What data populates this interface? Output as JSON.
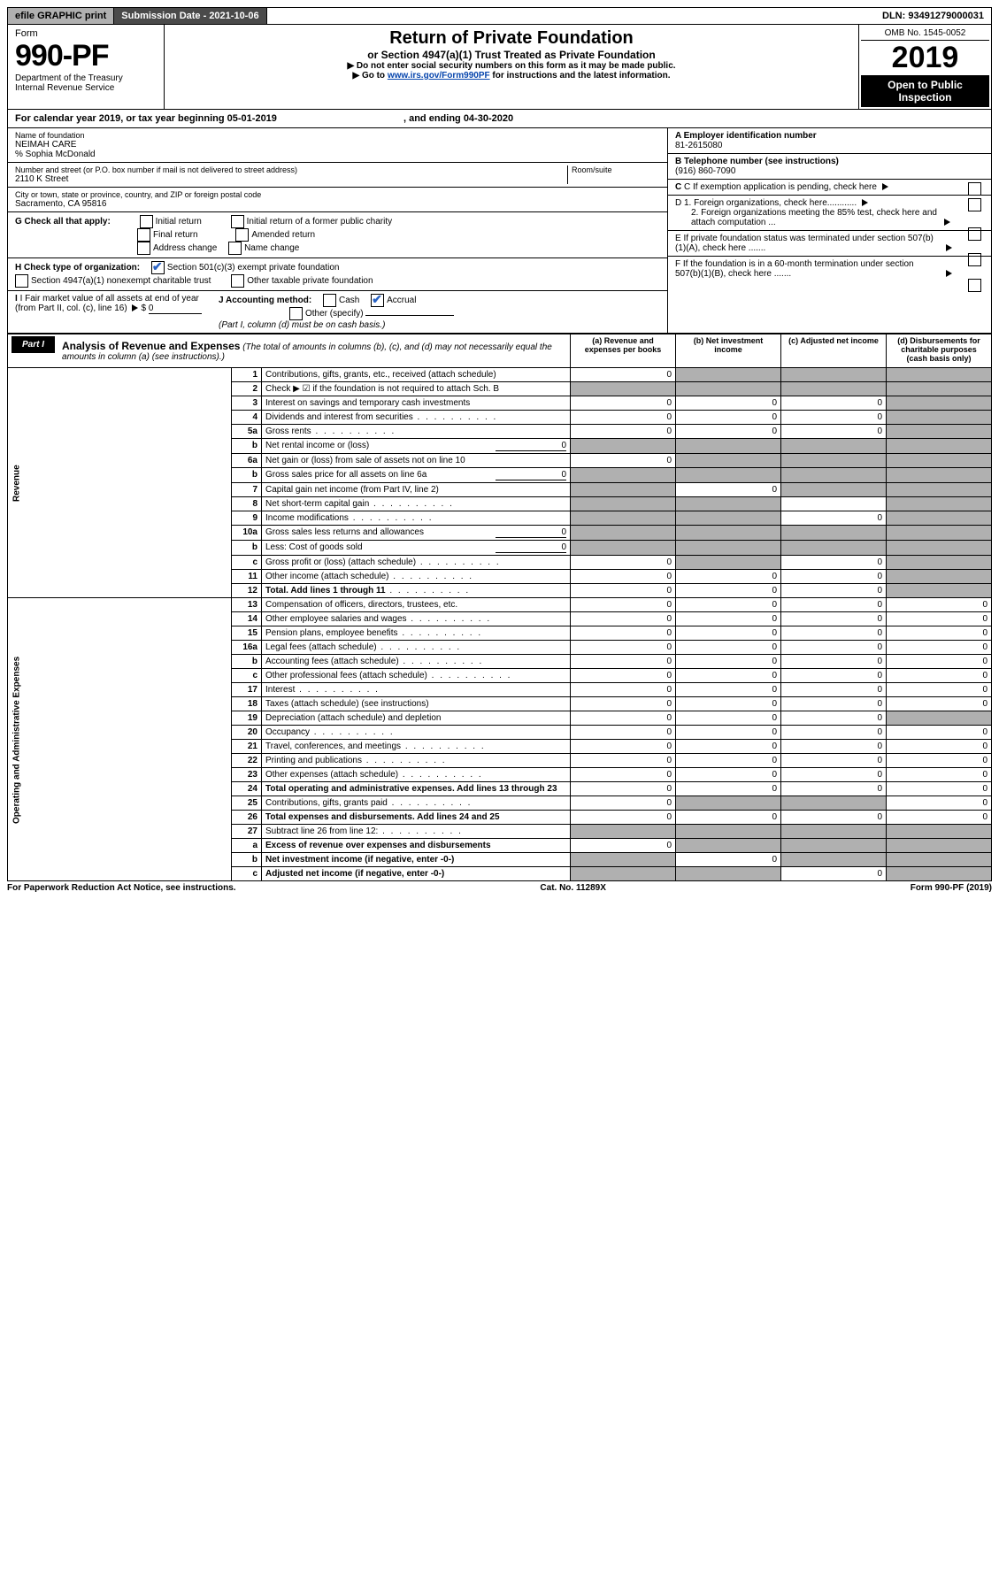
{
  "topbar": {
    "efile": "efile GRAPHIC print",
    "sublabel": "Submission Date - 2021-10-06",
    "dln": "DLN: 93491279000031"
  },
  "header": {
    "form_prefix": "Form",
    "form_no": "990-PF",
    "dept": "Department of the Treasury",
    "irs": "Internal Revenue Service",
    "title": "Return of Private Foundation",
    "sub1": "or Section 4947(a)(1) Trust Treated as Private Foundation",
    "sub2a": "▶ Do not enter social security numbers on this form as it may be made public.",
    "sub2b": "▶ Go to ",
    "link": "www.irs.gov/Form990PF",
    "sub2c": " for instructions and the latest information.",
    "omb": "OMB No. 1545-0052",
    "year": "2019",
    "open": "Open to Public Inspection"
  },
  "cal": {
    "text": "For calendar year 2019, or tax year beginning 05-01-2019",
    "end": ", and ending 04-30-2020"
  },
  "left": {
    "name_lbl": "Name of foundation",
    "name": "NEIMAH CARE",
    "care": "% Sophia McDonald",
    "addr_lbl": "Number and street (or P.O. box number if mail is not delivered to street address)",
    "addr": "2110 K Street",
    "room_lbl": "Room/suite",
    "city_lbl": "City or town, state or province, country, and ZIP or foreign postal code",
    "city": "Sacramento, CA  95816",
    "g": "G Check all that apply:",
    "g1": "Initial return",
    "g2": "Final return",
    "g3": "Address change",
    "g4": "Initial return of a former public charity",
    "g5": "Amended return",
    "g6": "Name change",
    "h": "H Check type of organization:",
    "h1": "Section 501(c)(3) exempt private foundation",
    "h2": "Section 4947(a)(1) nonexempt charitable trust",
    "h3": "Other taxable private foundation",
    "i": "I Fair market value of all assets at end of year (from Part II, col. (c), line 16)",
    "i_amt": "0",
    "j": "J Accounting method:",
    "j1": "Cash",
    "j2": "Accrual",
    "j3": "Other (specify)",
    "j_note": "(Part I, column (d) must be on cash basis.)"
  },
  "right": {
    "a_lbl": "A Employer identification number",
    "a": "81-2615080",
    "b_lbl": "B Telephone number (see instructions)",
    "b": "(916) 860-7090",
    "c": "C If exemption application is pending, check here",
    "d1": "D 1. Foreign organizations, check here............",
    "d2": "2. Foreign organizations meeting the 85% test, check here and attach computation ...",
    "e": "E  If private foundation status was terminated under section 507(b)(1)(A), check here .......",
    "f": "F  If the foundation is in a 60-month termination under section 507(b)(1)(B), check here ......."
  },
  "part1": {
    "tag": "Part I",
    "title": "Analysis of Revenue and Expenses",
    "note": "(The total of amounts in columns (b), (c), and (d) may not necessarily equal the amounts in column (a) (see instructions).)",
    "col_a": "(a)  Revenue and expenses per books",
    "col_b": "(b)  Net investment income",
    "col_c": "(c)  Adjusted net income",
    "col_d": "(d)  Disbursements for charitable purposes (cash basis only)"
  },
  "side": {
    "rev": "Revenue",
    "opex": "Operating and Administrative Expenses"
  },
  "rows": [
    {
      "n": "1",
      "d": "Contributions, gifts, grants, etc., received (attach schedule)",
      "a": "0",
      "b": "",
      "c": "",
      "dcol": "",
      "bg": [
        "",
        "g",
        "g",
        "g"
      ]
    },
    {
      "n": "2",
      "d": "Check ▶ ☑ if the foundation is not required to attach Sch. B",
      "a": "",
      "b": "",
      "c": "",
      "dcol": "",
      "bg": [
        "g",
        "g",
        "g",
        "g"
      ],
      "bold_not": true
    },
    {
      "n": "3",
      "d": "Interest on savings and temporary cash investments",
      "a": "0",
      "b": "0",
      "c": "0",
      "dcol": "",
      "bg": [
        "",
        "",
        "",
        "g"
      ]
    },
    {
      "n": "4",
      "d": "Dividends and interest from securities",
      "a": "0",
      "b": "0",
      "c": "0",
      "dcol": "",
      "bg": [
        "",
        "",
        "",
        "g"
      ]
    },
    {
      "n": "5a",
      "d": "Gross rents",
      "a": "0",
      "b": "0",
      "c": "0",
      "dcol": "",
      "bg": [
        "",
        "",
        "",
        "g"
      ]
    },
    {
      "n": "b",
      "d": "Net rental income or (loss)",
      "inline": "0",
      "a": "",
      "b": "",
      "c": "",
      "dcol": "",
      "bg": [
        "g",
        "g",
        "g",
        "g"
      ]
    },
    {
      "n": "6a",
      "d": "Net gain or (loss) from sale of assets not on line 10",
      "a": "0",
      "b": "",
      "c": "",
      "dcol": "",
      "bg": [
        "",
        "g",
        "g",
        "g"
      ]
    },
    {
      "n": "b",
      "d": "Gross sales price for all assets on line 6a",
      "inline": "0",
      "a": "",
      "b": "",
      "c": "",
      "dcol": "",
      "bg": [
        "g",
        "g",
        "g",
        "g"
      ]
    },
    {
      "n": "7",
      "d": "Capital gain net income (from Part IV, line 2)",
      "a": "",
      "b": "0",
      "c": "",
      "dcol": "",
      "bg": [
        "g",
        "",
        "g",
        "g"
      ]
    },
    {
      "n": "8",
      "d": "Net short-term capital gain",
      "a": "",
      "b": "",
      "c": "",
      "dcol": "",
      "bg": [
        "g",
        "g",
        "",
        "g"
      ]
    },
    {
      "n": "9",
      "d": "Income modifications",
      "a": "",
      "b": "",
      "c": "0",
      "dcol": "",
      "bg": [
        "g",
        "g",
        "",
        "g"
      ]
    },
    {
      "n": "10a",
      "d": "Gross sales less returns and allowances",
      "inline": "0",
      "a": "",
      "b": "",
      "c": "",
      "dcol": "",
      "bg": [
        "g",
        "g",
        "g",
        "g"
      ]
    },
    {
      "n": "b",
      "d": "Less: Cost of goods sold",
      "inline": "0",
      "a": "",
      "b": "",
      "c": "",
      "dcol": "",
      "bg": [
        "g",
        "g",
        "g",
        "g"
      ]
    },
    {
      "n": "c",
      "d": "Gross profit or (loss) (attach schedule)",
      "a": "0",
      "b": "",
      "c": "0",
      "dcol": "",
      "bg": [
        "",
        "g",
        "",
        "g"
      ]
    },
    {
      "n": "11",
      "d": "Other income (attach schedule)",
      "a": "0",
      "b": "0",
      "c": "0",
      "dcol": "",
      "bg": [
        "",
        "",
        "",
        "g"
      ]
    },
    {
      "n": "12",
      "d": "Total. Add lines 1 through 11",
      "a": "0",
      "b": "0",
      "c": "0",
      "dcol": "",
      "bg": [
        "",
        "",
        "",
        "g"
      ],
      "bold": true
    },
    {
      "n": "13",
      "d": "Compensation of officers, directors, trustees, etc.",
      "a": "0",
      "b": "0",
      "c": "0",
      "dcol": "0"
    },
    {
      "n": "14",
      "d": "Other employee salaries and wages",
      "a": "0",
      "b": "0",
      "c": "0",
      "dcol": "0"
    },
    {
      "n": "15",
      "d": "Pension plans, employee benefits",
      "a": "0",
      "b": "0",
      "c": "0",
      "dcol": "0"
    },
    {
      "n": "16a",
      "d": "Legal fees (attach schedule)",
      "a": "0",
      "b": "0",
      "c": "0",
      "dcol": "0"
    },
    {
      "n": "b",
      "d": "Accounting fees (attach schedule)",
      "a": "0",
      "b": "0",
      "c": "0",
      "dcol": "0"
    },
    {
      "n": "c",
      "d": "Other professional fees (attach schedule)",
      "a": "0",
      "b": "0",
      "c": "0",
      "dcol": "0"
    },
    {
      "n": "17",
      "d": "Interest",
      "a": "0",
      "b": "0",
      "c": "0",
      "dcol": "0"
    },
    {
      "n": "18",
      "d": "Taxes (attach schedule) (see instructions)",
      "a": "0",
      "b": "0",
      "c": "0",
      "dcol": "0"
    },
    {
      "n": "19",
      "d": "Depreciation (attach schedule) and depletion",
      "a": "0",
      "b": "0",
      "c": "0",
      "dcol": "",
      "bg": [
        "",
        "",
        "",
        "g"
      ]
    },
    {
      "n": "20",
      "d": "Occupancy",
      "a": "0",
      "b": "0",
      "c": "0",
      "dcol": "0"
    },
    {
      "n": "21",
      "d": "Travel, conferences, and meetings",
      "a": "0",
      "b": "0",
      "c": "0",
      "dcol": "0"
    },
    {
      "n": "22",
      "d": "Printing and publications",
      "a": "0",
      "b": "0",
      "c": "0",
      "dcol": "0"
    },
    {
      "n": "23",
      "d": "Other expenses (attach schedule)",
      "a": "0",
      "b": "0",
      "c": "0",
      "dcol": "0"
    },
    {
      "n": "24",
      "d": "Total operating and administrative expenses. Add lines 13 through 23",
      "a": "0",
      "b": "0",
      "c": "0",
      "dcol": "0",
      "bold": true
    },
    {
      "n": "25",
      "d": "Contributions, gifts, grants paid",
      "a": "0",
      "b": "",
      "c": "",
      "dcol": "0",
      "bg": [
        "",
        "g",
        "g",
        ""
      ]
    },
    {
      "n": "26",
      "d": "Total expenses and disbursements. Add lines 24 and 25",
      "a": "0",
      "b": "0",
      "c": "0",
      "dcol": "0",
      "bold": true
    },
    {
      "n": "27",
      "d": "Subtract line 26 from line 12:",
      "a": "",
      "b": "",
      "c": "",
      "dcol": "",
      "bg": [
        "g",
        "g",
        "g",
        "g"
      ]
    },
    {
      "n": "a",
      "d": "Excess of revenue over expenses and disbursements",
      "a": "0",
      "b": "",
      "c": "",
      "dcol": "",
      "bg": [
        "",
        "g",
        "g",
        "g"
      ],
      "bold": true
    },
    {
      "n": "b",
      "d": "Net investment income (if negative, enter -0-)",
      "a": "",
      "b": "0",
      "c": "",
      "dcol": "",
      "bg": [
        "g",
        "",
        "g",
        "g"
      ],
      "bold": true
    },
    {
      "n": "c",
      "d": "Adjusted net income (if negative, enter -0-)",
      "a": "",
      "b": "",
      "c": "0",
      "dcol": "",
      "bg": [
        "g",
        "g",
        "",
        "g"
      ],
      "bold": true
    }
  ],
  "foot": {
    "l": "For Paperwork Reduction Act Notice, see instructions.",
    "c": "Cat. No. 11289X",
    "r": "Form 990-PF (2019)"
  }
}
